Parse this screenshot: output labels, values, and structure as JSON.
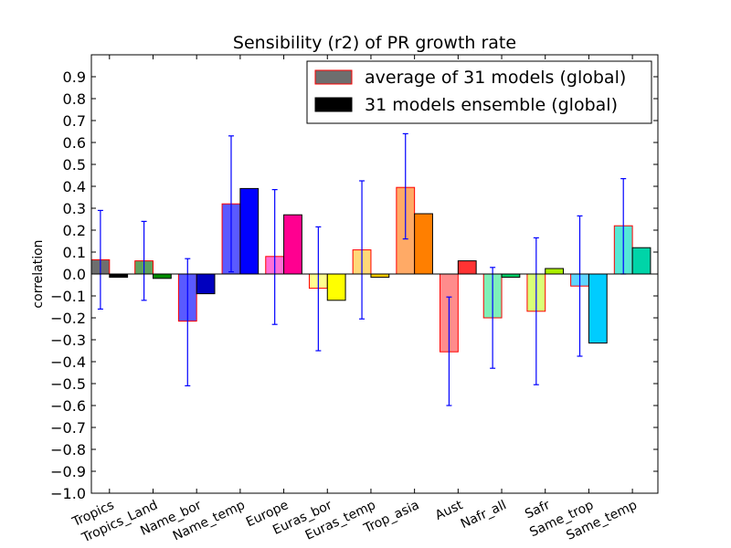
{
  "chart_data": {
    "type": "bar",
    "title": "Sensibility (r2) of PR growth rate",
    "xlabel": "",
    "ylabel": "correlation",
    "ylim": [
      -1.0,
      1.0
    ],
    "yticks": [
      -1.0,
      -0.9,
      -0.8,
      -0.7,
      -0.6,
      -0.5,
      -0.4,
      -0.3,
      -0.2,
      -0.1,
      0.0,
      0.1,
      0.2,
      0.3,
      0.4,
      0.5,
      0.6,
      0.7,
      0.8,
      0.9
    ],
    "ytick_labels": [
      "−1.0",
      "−0.9",
      "−0.8",
      "−0.7",
      "−0.6",
      "−0.5",
      "−0.4",
      "−0.3",
      "−0.2",
      "−0.1",
      "0.0",
      "0.1",
      "0.2",
      "0.3",
      "0.4",
      "0.5",
      "0.6",
      "0.7",
      "0.8",
      "0.9"
    ],
    "categories": [
      "Tropics",
      "Tropics_Land",
      "Name_bor",
      "Name_temp",
      "Europe",
      "Euras_bor",
      "Euras_temp",
      "Trop_asia",
      "Aust",
      "Nafr_all",
      "Safr",
      "Same_trop",
      "Same_temp"
    ],
    "series": [
      {
        "name": "average of 31 models (global)",
        "values": [
          0.065,
          0.06,
          -0.215,
          0.32,
          0.08,
          -0.065,
          0.11,
          0.395,
          -0.355,
          -0.2,
          -0.17,
          -0.055,
          0.22
        ],
        "error_low": [
          -0.16,
          -0.12,
          -0.51,
          0.01,
          -0.23,
          -0.35,
          -0.205,
          0.16,
          -0.6,
          -0.43,
          -0.505,
          -0.375,
          0.0
        ],
        "error_high": [
          0.29,
          0.24,
          0.07,
          0.63,
          0.385,
          0.215,
          0.425,
          0.64,
          -0.105,
          0.03,
          0.165,
          0.265,
          0.435
        ]
      },
      {
        "name": "31 models ensemble (global)",
        "values": [
          -0.015,
          -0.02,
          -0.09,
          0.39,
          0.27,
          -0.12,
          -0.015,
          0.275,
          0.06,
          -0.015,
          0.025,
          -0.315,
          0.12
        ]
      }
    ],
    "colors": {
      "avg_bars": [
        "#6e6e6e",
        "#5fa05f",
        "#5a5aff",
        "#5a5aff",
        "#ff6fd6",
        "#ffff8f",
        "#ffd878",
        "#ffaa66",
        "#ff8c8c",
        "#7ff0b8",
        "#d9ff77",
        "#5fd6ff",
        "#55e8d6"
      ],
      "ens_bars": [
        "#000000",
        "#008c00",
        "#0000bf",
        "#0000ff",
        "#ff0090",
        "#ffff00",
        "#ffcc00",
        "#ff7f00",
        "#ff3333",
        "#00cc66",
        "#aaee00",
        "#00ccff",
        "#00d4a8"
      ],
      "avg_edge": "#ff0000",
      "ens_edge": "#000000",
      "error_bar": "#0000ff"
    },
    "legend": {
      "position": "top-right",
      "entries": [
        {
          "label": "average of 31 models (global)",
          "color": "#6e6e6e",
          "edge": "#ff0000"
        },
        {
          "label": "31 models ensemble (global)",
          "color": "#000000",
          "edge": "#000000"
        }
      ]
    },
    "grid": false
  }
}
